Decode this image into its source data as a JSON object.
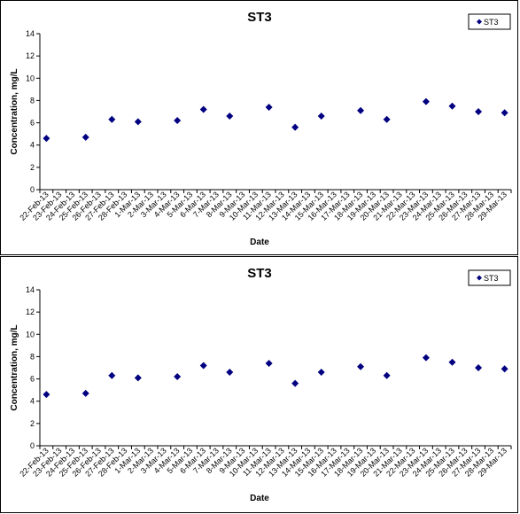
{
  "chart_data": [
    {
      "type": "scatter",
      "title": "ST3",
      "xlabel": "Date",
      "ylabel": "Concentration, mg/L",
      "ylim": [
        0,
        14
      ],
      "yticks": [
        0,
        2,
        4,
        6,
        8,
        10,
        12,
        14
      ],
      "x_categories": [
        "22-Feb-13",
        "23-Feb-13",
        "24-Feb-13",
        "25-Feb-13",
        "26-Feb-13",
        "27-Feb-13",
        "28-Feb-13",
        "1-Mar-13",
        "2-Mar-13",
        "3-Mar-13",
        "4-Mar-13",
        "5-Mar-13",
        "6-Mar-13",
        "7-Mar-13",
        "8-Mar-13",
        "9-Mar-13",
        "10-Mar-13",
        "11-Mar-13",
        "12-Mar-13",
        "13-Mar-13",
        "14-Mar-13",
        "15-Mar-13",
        "16-Mar-13",
        "17-Mar-13",
        "18-Mar-13",
        "19-Mar-13",
        "20-Mar-13",
        "21-Mar-13",
        "22-Mar-13",
        "23-Mar-13",
        "24-Mar-13",
        "25-Mar-13",
        "26-Mar-13",
        "27-Mar-13",
        "28-Mar-13",
        "29-Mar-13"
      ],
      "grid": false,
      "legend": "top-right",
      "series": [
        {
          "name": "ST3",
          "color": "#000080",
          "marker": "diamond",
          "points": [
            {
              "x": "22-Feb-13",
              "y": 4.6
            },
            {
              "x": "25-Feb-13",
              "y": 4.7
            },
            {
              "x": "27-Feb-13",
              "y": 6.3
            },
            {
              "x": "1-Mar-13",
              "y": 6.1
            },
            {
              "x": "4-Mar-13",
              "y": 6.2
            },
            {
              "x": "6-Mar-13",
              "y": 7.2
            },
            {
              "x": "8-Mar-13",
              "y": 6.6
            },
            {
              "x": "11-Mar-13",
              "y": 7.4
            },
            {
              "x": "13-Mar-13",
              "y": 5.6
            },
            {
              "x": "15-Mar-13",
              "y": 6.6
            },
            {
              "x": "18-Mar-13",
              "y": 7.1
            },
            {
              "x": "20-Mar-13",
              "y": 6.3
            },
            {
              "x": "23-Mar-13",
              "y": 7.9
            },
            {
              "x": "25-Mar-13",
              "y": 7.5
            },
            {
              "x": "27-Mar-13",
              "y": 7.0
            },
            {
              "x": "29-Mar-13",
              "y": 6.9
            }
          ]
        }
      ]
    },
    {
      "type": "scatter",
      "title": "ST3",
      "xlabel": "Date",
      "ylabel": "Concentration, mg/L",
      "ylim": [
        0,
        14
      ],
      "yticks": [
        0,
        2,
        4,
        6,
        8,
        10,
        12,
        14
      ],
      "x_categories": [
        "22-Feb-13",
        "23-Feb-13",
        "24-Feb-13",
        "25-Feb-13",
        "26-Feb-13",
        "27-Feb-13",
        "28-Feb-13",
        "1-Mar-13",
        "2-Mar-13",
        "3-Mar-13",
        "4-Mar-13",
        "5-Mar-13",
        "6-Mar-13",
        "7-Mar-13",
        "8-Mar-13",
        "9-Mar-13",
        "10-Mar-13",
        "11-Mar-13",
        "12-Mar-13",
        "13-Mar-13",
        "14-Mar-13",
        "15-Mar-13",
        "16-Mar-13",
        "17-Mar-13",
        "18-Mar-13",
        "19-Mar-13",
        "20-Mar-13",
        "21-Mar-13",
        "22-Mar-13",
        "23-Mar-13",
        "24-Mar-13",
        "25-Mar-13",
        "26-Mar-13",
        "27-Mar-13",
        "28-Mar-13",
        "29-Mar-13"
      ],
      "grid": false,
      "legend": "top-right",
      "series": [
        {
          "name": "ST3",
          "color": "#000080",
          "marker": "diamond",
          "points": [
            {
              "x": "22-Feb-13",
              "y": 4.6
            },
            {
              "x": "25-Feb-13",
              "y": 4.7
            },
            {
              "x": "27-Feb-13",
              "y": 6.3
            },
            {
              "x": "1-Mar-13",
              "y": 6.1
            },
            {
              "x": "4-Mar-13",
              "y": 6.2
            },
            {
              "x": "6-Mar-13",
              "y": 7.2
            },
            {
              "x": "8-Mar-13",
              "y": 6.6
            },
            {
              "x": "11-Mar-13",
              "y": 7.4
            },
            {
              "x": "13-Mar-13",
              "y": 5.6
            },
            {
              "x": "15-Mar-13",
              "y": 6.6
            },
            {
              "x": "18-Mar-13",
              "y": 7.1
            },
            {
              "x": "20-Mar-13",
              "y": 6.3
            },
            {
              "x": "23-Mar-13",
              "y": 7.9
            },
            {
              "x": "25-Mar-13",
              "y": 7.5
            },
            {
              "x": "27-Mar-13",
              "y": 7.0
            },
            {
              "x": "29-Mar-13",
              "y": 6.9
            }
          ]
        }
      ]
    }
  ]
}
